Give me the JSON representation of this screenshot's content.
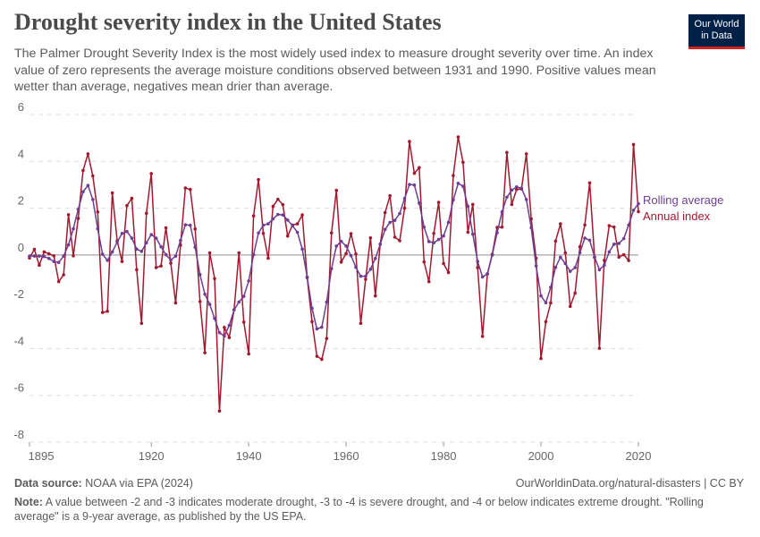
{
  "header": {
    "title": "Drought severity index in the United States",
    "subtitle": "The Palmer Drought Severity Index is the most widely used index to measure drought severity over time. An index value of zero represents the average moisture conditions observed between 1931 and 1990. Positive values mean wetter than average, negatives mean drier than average.",
    "logo_line1": "Our World",
    "logo_line2": "in Data"
  },
  "footer": {
    "source_label": "Data source:",
    "source": "NOAA via EPA (2024)",
    "url": "OurWorldinData.org/natural-disasters | CC BY",
    "note_label": "Note:",
    "note": "A value between -2 and -3 indicates moderate drought, -3 to -4 is severe drought, and -4 or below indicates extreme drought. \"Rolling average\" is a 9-year average, as published by the US EPA."
  },
  "chart_data": {
    "type": "line",
    "title": "Drought severity index in the United States",
    "xlabel": "",
    "ylabel": "",
    "xlim": [
      1895,
      2020
    ],
    "ylim": [
      -8,
      6
    ],
    "x_ticks": [
      1895,
      1920,
      1940,
      1960,
      1980,
      2000,
      2020
    ],
    "y_ticks": [
      -8,
      -6,
      -4,
      -2,
      0,
      2,
      4,
      6
    ],
    "grid": "horizontal dashed",
    "legend": "right, inline labels",
    "x_start": 1895,
    "series": [
      {
        "name": "Rolling average",
        "color": "#6d3e91",
        "values": [
          -0.05,
          -0.05,
          -0.05,
          -0.07,
          -0.15,
          -0.28,
          -0.32,
          -0.05,
          0.43,
          1.12,
          1.95,
          2.7,
          2.97,
          2.37,
          1.12,
          0.03,
          -0.23,
          0.13,
          0.55,
          0.92,
          1.0,
          0.72,
          0.25,
          0.15,
          0.52,
          0.87,
          0.72,
          0.35,
          0.01,
          -0.22,
          -0.05,
          0.62,
          1.29,
          1.27,
          0.33,
          -0.84,
          -1.68,
          -2.11,
          -2.71,
          -3.32,
          -3.47,
          -3.01,
          -2.35,
          -2.01,
          -1.77,
          -1.11,
          0.01,
          0.94,
          1.27,
          1.33,
          1.54,
          1.73,
          1.71,
          1.49,
          1.25,
          0.97,
          0.25,
          -0.94,
          -2.28,
          -3.16,
          -3.09,
          -2.01,
          -0.59,
          0.38,
          0.58,
          0.38,
          -0.03,
          -0.53,
          -0.91,
          -0.91,
          -0.61,
          -0.15,
          0.46,
          1.09,
          1.39,
          1.48,
          1.77,
          2.41,
          3.01,
          2.99,
          2.22,
          1.19,
          0.57,
          0.52,
          0.66,
          0.81,
          1.39,
          2.35,
          3.06,
          2.94,
          2.08,
          0.89,
          -0.28,
          -0.94,
          -0.81,
          0.0,
          0.95,
          1.84,
          2.47,
          2.77,
          2.91,
          2.85,
          2.37,
          1.16,
          -0.47,
          -1.75,
          -2.04,
          -1.39,
          -0.53,
          -0.1,
          -0.37,
          -0.7,
          -0.54,
          0.1,
          0.72,
          0.63,
          -0.09,
          -0.63,
          -0.44,
          0.13,
          0.46,
          0.49,
          0.7,
          1.28,
          1.91,
          2.19
        ]
      },
      {
        "name": "Annual index",
        "color": "#a2192e",
        "values": [
          -0.13,
          0.24,
          -0.44,
          0.13,
          0.05,
          -0.04,
          -1.14,
          -0.85,
          1.72,
          -0.04,
          1.56,
          3.61,
          4.32,
          3.38,
          1.84,
          -2.46,
          -2.41,
          2.65,
          0.6,
          -0.28,
          2.11,
          2.42,
          -0.63,
          -2.92,
          1.78,
          3.48,
          -0.54,
          -0.47,
          1.16,
          -0.35,
          -2.05,
          0.42,
          2.86,
          2.8,
          1.11,
          -1.99,
          -4.18,
          0.09,
          -1.01,
          -6.67,
          -3.1,
          -3.53,
          -2.34,
          0.09,
          -2.87,
          -4.23,
          1.67,
          3.22,
          0.92,
          -0.14,
          2.08,
          2.38,
          2.15,
          0.81,
          1.28,
          1.33,
          1.71,
          -0.97,
          -2.85,
          -4.33,
          -4.46,
          -3.57,
          0.94,
          2.76,
          -0.3,
          0.06,
          0.91,
          0.04,
          -2.92,
          -1.04,
          0.73,
          -1.75,
          0.46,
          1.81,
          2.53,
          0.76,
          0.61,
          2.0,
          4.85,
          3.49,
          3.73,
          -0.3,
          -1.14,
          0.92,
          2.25,
          -0.37,
          -0.75,
          3.39,
          5.04,
          3.96,
          0.97,
          2.16,
          -0.54,
          -3.48,
          -0.81,
          0.03,
          1.18,
          1.19,
          4.38,
          2.16,
          2.8,
          2.82,
          4.32,
          1.54,
          -0.14,
          -4.43,
          -2.85,
          -2.05,
          0.59,
          1.33,
          0.09,
          -2.2,
          -1.63,
          0.35,
          1.28,
          3.08,
          -0.1,
          -3.99,
          -0.23,
          1.25,
          1.19,
          -0.09,
          0.01,
          -0.24,
          4.72,
          1.85
        ]
      }
    ]
  }
}
